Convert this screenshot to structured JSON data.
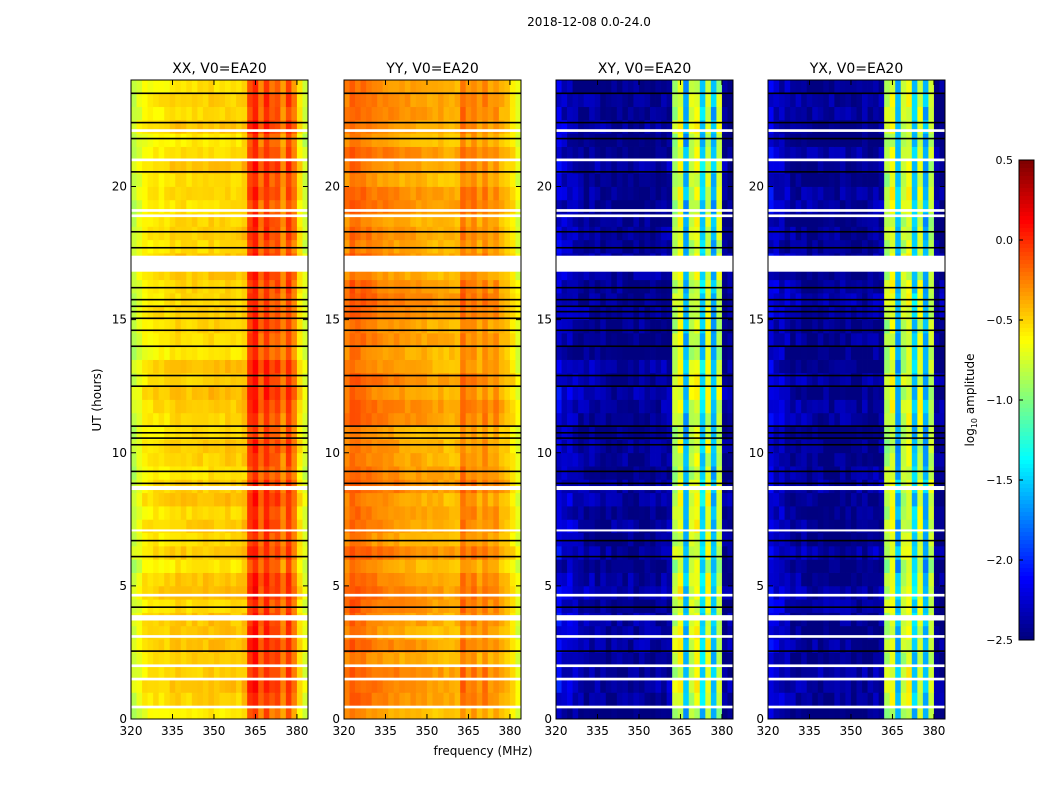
{
  "chart_data": {
    "type": "heatmap",
    "title": "2018-12-08 0.0-24.0",
    "xlabel": "frequency (MHz)",
    "ylabel": "UT (hours)",
    "xlim": [
      320,
      384
    ],
    "ylim": [
      0,
      24
    ],
    "xticks": [
      "320",
      "335",
      "350",
      "365",
      "380"
    ],
    "xtick_values": [
      320,
      335,
      350,
      365,
      380
    ],
    "yticks": [
      "0",
      "5",
      "10",
      "15",
      "20"
    ],
    "ytick_values": [
      0,
      5,
      10,
      15,
      20
    ],
    "freq_bin_mhz": 2,
    "time_bin_hours": 0.5,
    "colorbar": {
      "label_main": "log",
      "label_sub": "10",
      "label_rest": " amplitude",
      "range": [
        -2.5,
        0.5
      ],
      "ticks": [
        "0.5",
        "0.0",
        "−0.5",
        "−1.0",
        "−1.5",
        "−2.0",
        "−2.5"
      ],
      "tick_values": [
        0.5,
        0.0,
        -0.5,
        -1.0,
        -1.5,
        -2.0,
        -2.5
      ],
      "colormap": "jet"
    },
    "flagged_white_hours": [
      [
        16.8,
        17.4
      ],
      [
        20.95,
        21.05
      ],
      [
        22.05,
        22.15
      ],
      [
        18.85,
        18.95
      ],
      [
        19.05,
        19.15
      ],
      [
        8.6,
        8.75
      ],
      [
        3.7,
        3.9
      ],
      [
        3.05,
        3.15
      ],
      [
        1.95,
        2.05
      ],
      [
        1.45,
        1.55
      ],
      [
        0.4,
        0.5
      ],
      [
        4.6,
        4.7
      ],
      [
        7.05,
        7.12
      ]
    ],
    "black_line_hours": [
      23.5,
      22.4,
      21.8,
      20.55,
      18.3,
      17.7,
      16.2,
      15.75,
      15.5,
      15.3,
      15.05,
      14.6,
      14.0,
      12.9,
      12.5,
      11.0,
      10.75,
      10.55,
      10.3,
      9.3,
      8.85,
      6.7,
      6.1,
      4.2,
      3.1,
      2.55
    ],
    "panels": [
      {
        "title": "XX, V0=EA20",
        "mode": "parallel",
        "freq_profile": [
          -0.8,
          -0.7,
          -0.6,
          -0.58,
          -0.55,
          -0.55,
          -0.55,
          -0.52,
          -0.5,
          -0.5,
          -0.52,
          -0.5,
          -0.5,
          -0.5,
          -0.48,
          -0.5,
          -0.5,
          -0.48,
          -0.5,
          -0.5,
          -0.45,
          -0.05,
          0.05,
          -0.2,
          0.0,
          -0.15,
          -0.1,
          -0.3,
          -0.05,
          -0.25,
          -0.55,
          -0.75
        ]
      },
      {
        "title": "YY, V0=EA20",
        "mode": "parallel",
        "freq_profile": [
          -0.25,
          -0.15,
          -0.18,
          -0.2,
          -0.22,
          -0.25,
          -0.27,
          -0.28,
          -0.3,
          -0.3,
          -0.32,
          -0.33,
          -0.34,
          -0.35,
          -0.36,
          -0.37,
          -0.38,
          -0.38,
          -0.4,
          -0.4,
          -0.4,
          -0.2,
          -0.3,
          -0.25,
          -0.35,
          -0.25,
          -0.35,
          -0.3,
          -0.4,
          -0.45,
          -0.55,
          -0.7
        ]
      },
      {
        "title": "XY, V0=EA20",
        "mode": "cross",
        "freq_profile": [
          -2.2,
          -2.3,
          -2.3,
          -2.35,
          -2.4,
          -2.4,
          -2.4,
          -2.45,
          -2.45,
          -2.45,
          -2.45,
          -2.45,
          -2.45,
          -2.45,
          -2.45,
          -2.45,
          -2.45,
          -2.45,
          -2.45,
          -2.4,
          -2.4,
          -0.85,
          -0.7,
          -1.6,
          -0.8,
          -0.7,
          -1.5,
          -0.75,
          -1.6,
          -0.8,
          -2.45,
          -2.45
        ]
      },
      {
        "title": "YX, V0=EA20",
        "mode": "cross",
        "freq_profile": [
          -2.2,
          -2.3,
          -2.3,
          -2.35,
          -2.4,
          -2.4,
          -2.4,
          -2.45,
          -2.45,
          -2.45,
          -2.45,
          -2.45,
          -2.45,
          -2.45,
          -2.45,
          -2.45,
          -2.45,
          -2.45,
          -2.45,
          -2.4,
          -2.4,
          -0.85,
          -0.7,
          -1.6,
          -0.8,
          -0.7,
          -1.5,
          -0.75,
          -1.6,
          -0.8,
          -2.45,
          -2.45
        ]
      }
    ]
  }
}
